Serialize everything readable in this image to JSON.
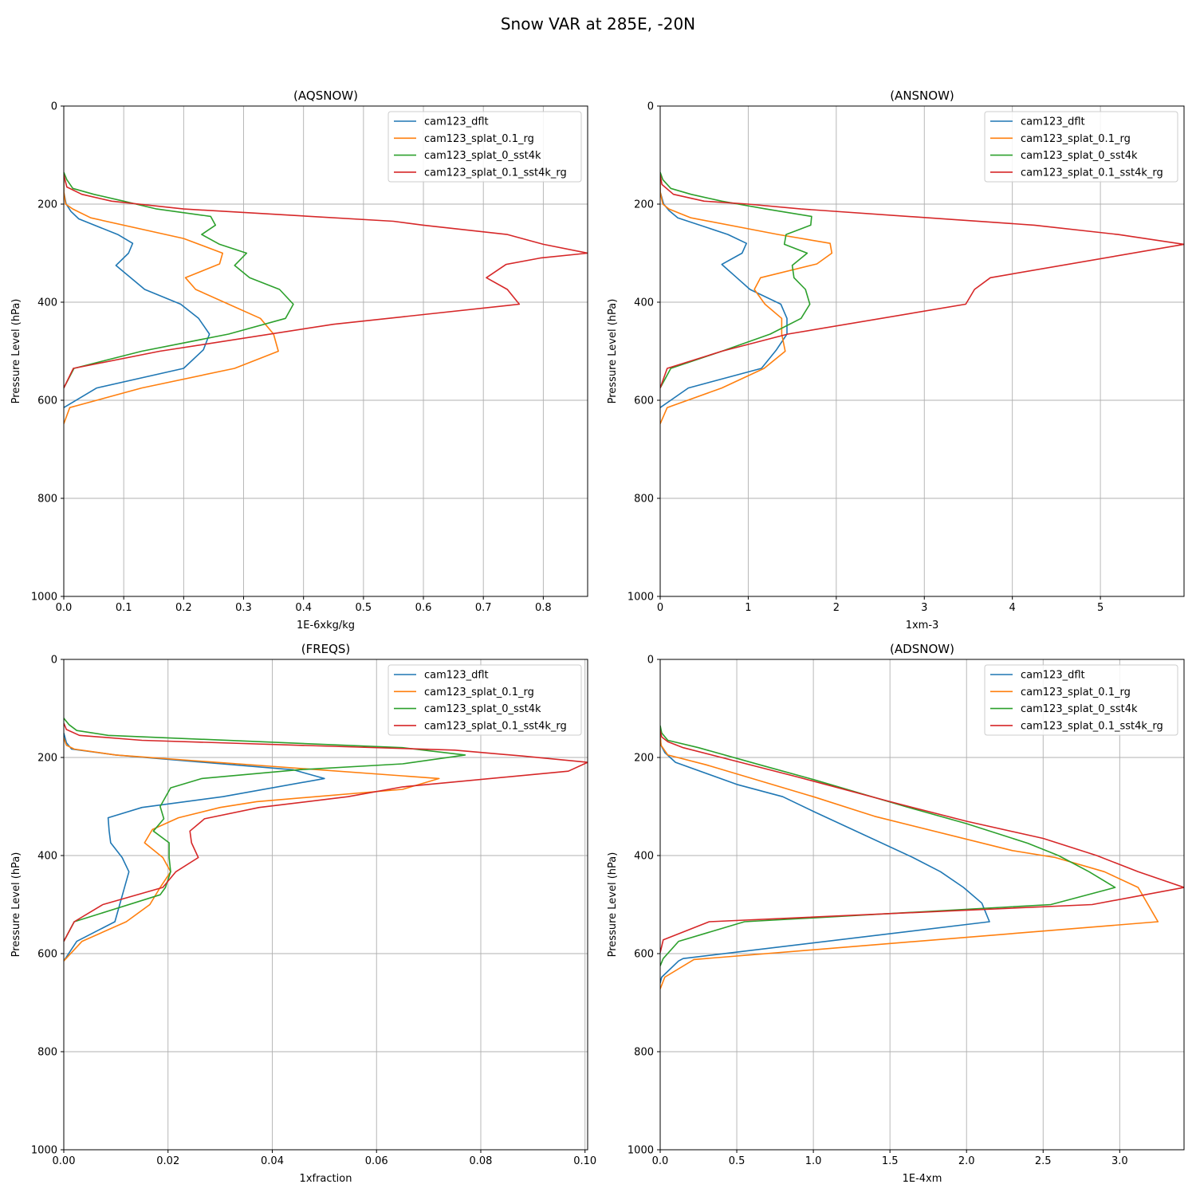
{
  "figure": {
    "title": "Snow VAR at 285E, -20N"
  },
  "chart_data": [
    {
      "type": "line",
      "title": "(AQSNOW)",
      "xlabel": "1E-6xkg/kg",
      "ylabel": "Pressure Level (hPa)",
      "xlim": [
        0,
        0.874
      ],
      "ylim": [
        1000,
        0
      ],
      "xticks": [
        "0.0",
        "0.1",
        "0.2",
        "0.3",
        "0.4",
        "0.5",
        "0.6",
        "0.7",
        "0.8"
      ],
      "xtick_values": [
        0,
        0.1,
        0.2,
        0.3,
        0.4,
        0.5,
        0.6,
        0.7,
        0.8
      ],
      "yticks": [
        "0",
        "200",
        "400",
        "600",
        "800",
        "1000"
      ],
      "ytick_values": [
        0,
        200,
        400,
        600,
        800,
        1000
      ],
      "grid": true,
      "legend_position": "upper-right",
      "series": [
        {
          "name": "cam123_dflt",
          "color": "#1f77b4",
          "x": [
            0,
            0,
            0.004,
            0.012,
            0.025,
            0.09,
            0.115,
            0.108,
            0.087,
            0.135,
            0.195,
            0.225,
            0.243,
            0.233,
            0.2,
            0.055,
            0
          ],
          "y": [
            150,
            175,
            200,
            215,
            230,
            262,
            280,
            300,
            325,
            374,
            404,
            433,
            465,
            497,
            535,
            575,
            615
          ]
        },
        {
          "name": "cam123_splat_0.1_rg",
          "color": "#ff7f0e",
          "x": [
            0,
            0,
            0.003,
            0.015,
            0.045,
            0.2,
            0.265,
            0.26,
            0.203,
            0.22,
            0.275,
            0.328,
            0.35,
            0.358,
            0.285,
            0.13,
            0.01,
            0
          ],
          "y": [
            150,
            175,
            200,
            210,
            228,
            270,
            300,
            322,
            350,
            374,
            404,
            433,
            465,
            500,
            535,
            575,
            615,
            648
          ]
        },
        {
          "name": "cam123_splat_0_sst4k",
          "color": "#2ca02c",
          "x": [
            0,
            0.005,
            0.015,
            0.05,
            0.1,
            0.155,
            0.245,
            0.253,
            0.23,
            0.26,
            0.305,
            0.285,
            0.31,
            0.36,
            0.383,
            0.37,
            0.275,
            0.13,
            0.017,
            0
          ],
          "y": [
            135,
            150,
            168,
            180,
            194,
            210,
            225,
            243,
            262,
            282,
            300,
            325,
            350,
            374,
            404,
            433,
            465,
            500,
            535,
            575
          ]
        },
        {
          "name": "cam123_splat_0.1_sst4k_rg",
          "color": "#d62728",
          "x": [
            0,
            0.005,
            0.03,
            0.08,
            0.2,
            0.55,
            0.6,
            0.74,
            0.8,
            0.874,
            0.795,
            0.738,
            0.705,
            0.74,
            0.76,
            0.45,
            0.16,
            0.016,
            0
          ],
          "y": [
            140,
            165,
            180,
            194,
            210,
            235,
            243,
            262,
            282,
            300,
            310,
            323,
            350,
            374,
            404,
            445,
            500,
            535,
            575
          ]
        }
      ]
    },
    {
      "type": "line",
      "title": "(ANSNOW)",
      "xlabel": "1xm-3",
      "ylabel": "Pressure Level (hPa)",
      "xlim": [
        0,
        5.95
      ],
      "ylim": [
        1000,
        0
      ],
      "xticks": [
        "0",
        "1",
        "2",
        "3",
        "4",
        "5"
      ],
      "xtick_values": [
        0,
        1,
        2,
        3,
        4,
        5
      ],
      "yticks": [
        "0",
        "200",
        "400",
        "600",
        "800",
        "1000"
      ],
      "ytick_values": [
        0,
        200,
        400,
        600,
        800,
        1000
      ],
      "grid": true,
      "legend_position": "upper-right",
      "series": [
        {
          "name": "cam123_dflt",
          "color": "#1f77b4",
          "x": [
            0,
            0,
            0.04,
            0.1,
            0.2,
            0.77,
            0.98,
            0.93,
            0.7,
            0.87,
            1.02,
            1.37,
            1.44,
            1.44,
            1.32,
            1.15,
            0.32,
            0
          ],
          "y": [
            150,
            175,
            200,
            213,
            228,
            262,
            280,
            300,
            323,
            350,
            374,
            404,
            433,
            465,
            497,
            535,
            575,
            615
          ]
        },
        {
          "name": "cam123_splat_0.1_rg",
          "color": "#ff7f0e",
          "x": [
            0,
            0,
            0.03,
            0.1,
            0.35,
            1.34,
            1.93,
            1.95,
            1.78,
            1.14,
            1.07,
            1.19,
            1.38,
            1.38,
            1.42,
            1.18,
            0.7,
            0.08,
            0
          ],
          "y": [
            150,
            175,
            200,
            210,
            228,
            262,
            280,
            300,
            322,
            350,
            374,
            404,
            433,
            465,
            500,
            535,
            575,
            615,
            648
          ]
        },
        {
          "name": "cam123_splat_0_sst4k",
          "color": "#2ca02c",
          "x": [
            0,
            0.03,
            0.12,
            0.35,
            0.7,
            1.2,
            1.72,
            1.71,
            1.43,
            1.41,
            1.67,
            1.5,
            1.52,
            1.65,
            1.7,
            1.6,
            1.25,
            0.7,
            0.12,
            0
          ],
          "y": [
            135,
            150,
            168,
            180,
            194,
            210,
            225,
            243,
            262,
            282,
            300,
            325,
            350,
            374,
            404,
            433,
            465,
            500,
            535,
            575
          ]
        },
        {
          "name": "cam123_splat_0.1_sst4k_rg",
          "color": "#d62728",
          "x": [
            0,
            0.02,
            0.15,
            0.5,
            1.0,
            1.6,
            4.25,
            5.2,
            5.95,
            3.75,
            3.57,
            3.47,
            1.45,
            0.7,
            0.08,
            0
          ],
          "y": [
            140,
            160,
            180,
            194,
            200,
            210,
            243,
            262,
            282,
            350,
            374,
            404,
            465,
            500,
            535,
            575
          ]
        }
      ]
    },
    {
      "type": "line",
      "title": "(FREQS)",
      "xlabel": "1xfraction",
      "ylabel": "Pressure Level (hPa)",
      "xlim": [
        0,
        0.1005
      ],
      "ylim": [
        1000,
        0
      ],
      "xticks": [
        "0.00",
        "0.02",
        "0.04",
        "0.06",
        "0.08",
        "0.10"
      ],
      "xtick_values": [
        0,
        0.02,
        0.04,
        0.06,
        0.08,
        0.1
      ],
      "yticks": [
        "0",
        "200",
        "400",
        "600",
        "800",
        "1000"
      ],
      "ytick_values": [
        0,
        200,
        400,
        600,
        800,
        1000
      ],
      "grid": true,
      "legend_position": "upper-right",
      "series": [
        {
          "name": "cam123_dflt",
          "color": "#1f77b4",
          "x": [
            0,
            0.0005,
            0.0015,
            0.01,
            0.044,
            0.05,
            0.0305,
            0.015,
            0.0085,
            0.0087,
            0.009,
            0.0112,
            0.0125,
            0.0098,
            0.0025,
            0
          ],
          "y": [
            150,
            170,
            183,
            195,
            225,
            243,
            280,
            302,
            323,
            350,
            374,
            404,
            433,
            535,
            575,
            615
          ]
        },
        {
          "name": "cam123_splat_0.1_rg",
          "color": "#ff7f0e",
          "x": [
            0,
            0.0005,
            0.002,
            0.01,
            0.072,
            0.065,
            0.037,
            0.03,
            0.022,
            0.017,
            0.0155,
            0.019,
            0.0205,
            0.0185,
            0.0165,
            0.012,
            0.0035,
            0
          ],
          "y": [
            160,
            175,
            183,
            195,
            243,
            265,
            290,
            302,
            323,
            347,
            374,
            404,
            433,
            465,
            500,
            535,
            575,
            615
          ]
        },
        {
          "name": "cam123_splat_0_sst4k",
          "color": "#2ca02c",
          "x": [
            0,
            0.001,
            0.0025,
            0.0085,
            0.065,
            0.077,
            0.065,
            0.045,
            0.0265,
            0.0205,
            0.0185,
            0.0192,
            0.0172,
            0.0202,
            0.0202,
            0.0205,
            0.0195,
            0.0185,
            0.002,
            0
          ],
          "y": [
            120,
            133,
            145,
            155,
            180,
            195,
            213,
            225,
            243,
            262,
            300,
            325,
            350,
            374,
            404,
            433,
            465,
            480,
            535,
            575
          ]
        },
        {
          "name": "cam123_splat_0.1_sst4k_rg",
          "color": "#d62728",
          "x": [
            0,
            0.0005,
            0.003,
            0.015,
            0.075,
            0.088,
            0.1005,
            0.0968,
            0.065,
            0.0545,
            0.0375,
            0.027,
            0.0242,
            0.0245,
            0.0258,
            0.0215,
            0.019,
            0.0075,
            0.002,
            0
          ],
          "y": [
            130,
            143,
            155,
            165,
            185,
            197,
            210,
            228,
            260,
            280,
            302,
            325,
            350,
            374,
            404,
            433,
            465,
            500,
            535,
            575
          ]
        }
      ]
    },
    {
      "type": "line",
      "title": "(ADSNOW)",
      "xlabel": "1E-4xm",
      "ylabel": "Pressure Level (hPa)",
      "xlim": [
        0,
        3.42
      ],
      "ylim": [
        1000,
        0
      ],
      "xticks": [
        "0.0",
        "0.5",
        "1.0",
        "1.5",
        "2.0",
        "2.5",
        "3.0"
      ],
      "xtick_values": [
        0,
        0.5,
        1,
        1.5,
        2,
        2.5,
        3
      ],
      "yticks": [
        "0",
        "200",
        "400",
        "600",
        "800",
        "1000"
      ],
      "ytick_values": [
        0,
        200,
        400,
        600,
        800,
        1000
      ],
      "grid": true,
      "legend_position": "upper-right",
      "series": [
        {
          "name": "cam123_dflt",
          "color": "#1f77b4",
          "x": [
            0,
            0.005,
            0.03,
            0.1,
            0.5,
            0.8,
            1.0,
            1.65,
            1.83,
            1.98,
            2.1,
            2.15,
            0.15,
            0.12,
            0.01,
            0
          ],
          "y": [
            155,
            175,
            190,
            210,
            255,
            280,
            310,
            404,
            433,
            465,
            497,
            535,
            610,
            615,
            648,
            660
          ]
        },
        {
          "name": "cam123_splat_0.1_rg",
          "color": "#ff7f0e",
          "x": [
            0,
            0.005,
            0.05,
            0.3,
            1.0,
            1.4,
            2.3,
            2.58,
            2.9,
            3.12,
            3.25,
            0.22,
            0.03,
            0
          ],
          "y": [
            155,
            175,
            195,
            215,
            280,
            320,
            390,
            404,
            433,
            465,
            535,
            612,
            648,
            672
          ]
        },
        {
          "name": "cam123_splat_0_sst4k",
          "color": "#2ca02c",
          "x": [
            0,
            0.01,
            0.05,
            0.25,
            0.65,
            1.0,
            1.6,
            2.0,
            2.4,
            2.6,
            2.8,
            2.97,
            2.55,
            0.55,
            0.12,
            0.02,
            0
          ],
          "y": [
            135,
            150,
            165,
            180,
            215,
            245,
            300,
            335,
            375,
            400,
            433,
            465,
            500,
            535,
            575,
            610,
            625
          ]
        },
        {
          "name": "cam123_splat_0.1_sst4k_rg",
          "color": "#d62728",
          "x": [
            0,
            0.01,
            0.05,
            0.15,
            0.4,
            0.9,
            1.5,
            2.0,
            2.5,
            2.85,
            3.12,
            3.42,
            2.82,
            0.32,
            0.02,
            0
          ],
          "y": [
            145,
            158,
            168,
            180,
            200,
            240,
            290,
            330,
            365,
            400,
            433,
            465,
            500,
            535,
            572,
            598
          ]
        }
      ]
    }
  ]
}
